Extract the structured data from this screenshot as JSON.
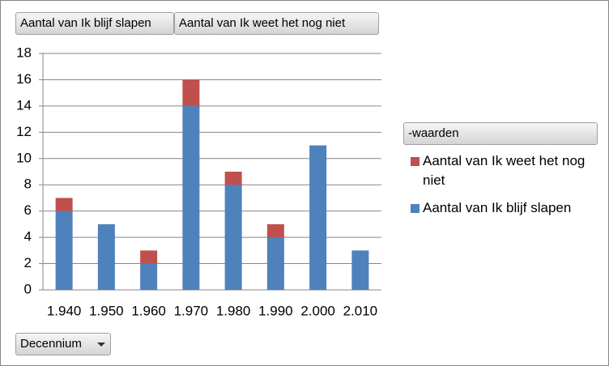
{
  "chart_data": {
    "type": "bar",
    "stacked": true,
    "filter_buttons": [
      "Aantal van Ik blijf slapen",
      "Aantal van Ik weet het nog niet"
    ],
    "axis_field_button": "Decennium",
    "legend_title": "-waarden",
    "categories": [
      "1.940",
      "1.950",
      "1.960",
      "1.970",
      "1.980",
      "1.990",
      "2.000",
      "2.010"
    ],
    "series": [
      {
        "name": "Aantal van Ik blijf slapen",
        "color": "#4f81bd",
        "values": [
          6,
          5,
          2,
          14,
          8,
          4,
          11,
          3
        ]
      },
      {
        "name": "Aantal van Ik weet het nog niet",
        "color": "#c0504d",
        "values": [
          1,
          null,
          1,
          2,
          1,
          1,
          null,
          null
        ]
      }
    ],
    "ylim": [
      0,
      18
    ],
    "yticks": [
      0,
      2,
      4,
      6,
      8,
      10,
      12,
      14,
      16,
      18
    ],
    "grid": true,
    "legend": "right"
  }
}
